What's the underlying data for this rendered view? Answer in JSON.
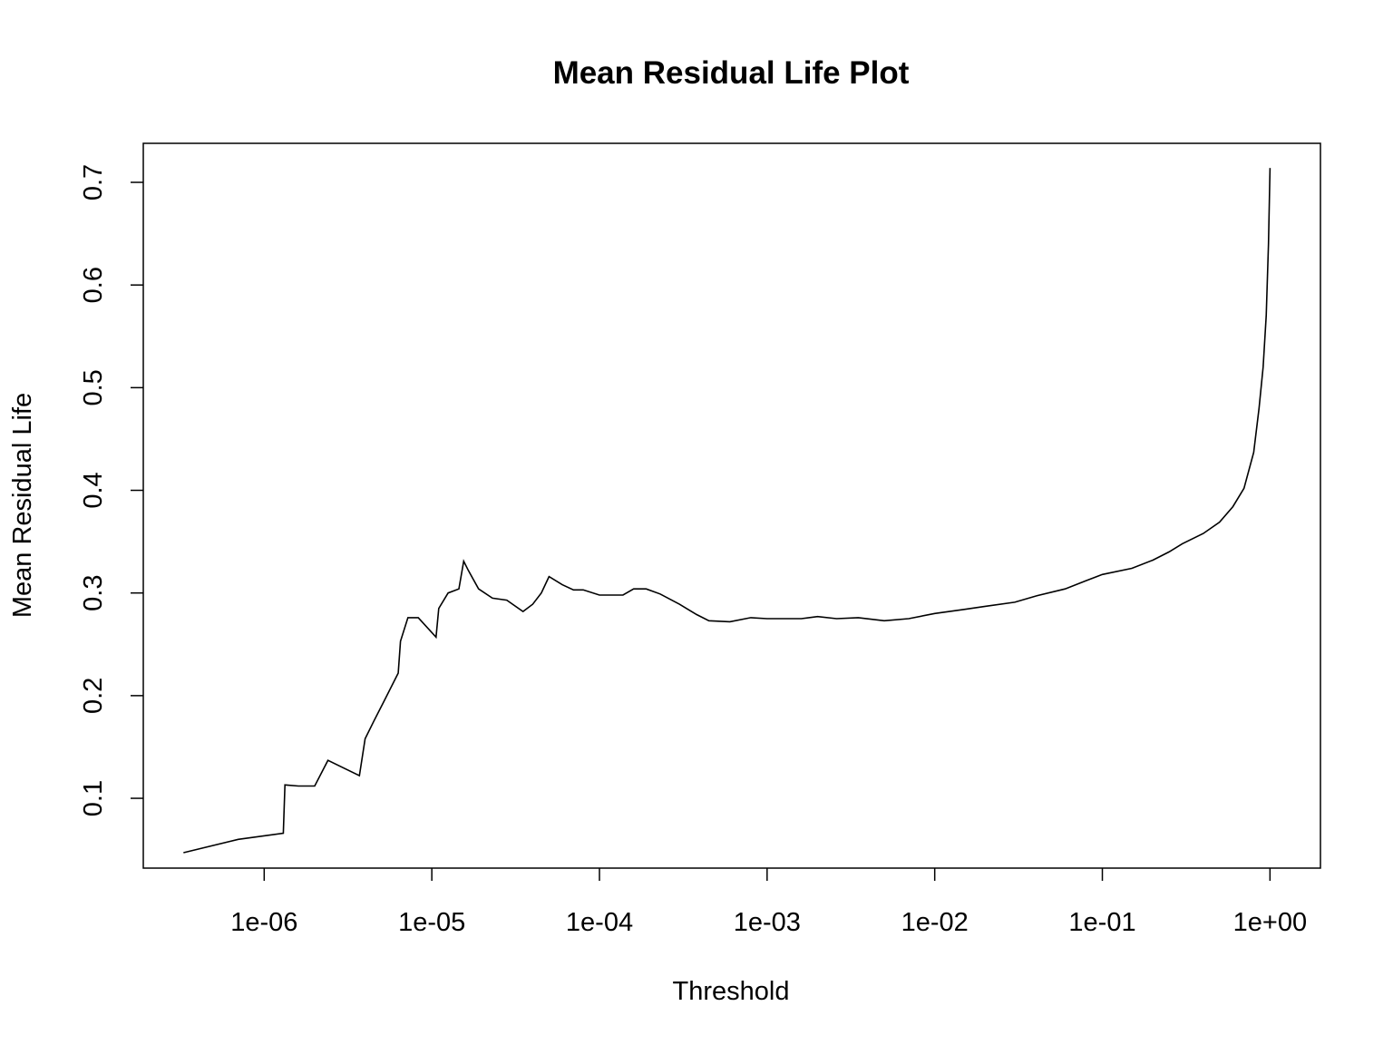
{
  "chart_data": {
    "type": "line",
    "title": "Mean Residual Life Plot",
    "xlabel": "Threshold",
    "ylabel": "Mean Residual Life",
    "x_scale": "log",
    "xlim": [
      1.9e-07,
      2.0
    ],
    "ylim": [
      0.032,
      0.738
    ],
    "x_ticks": [
      {
        "value": 1e-06,
        "label": "1e-06"
      },
      {
        "value": 1e-05,
        "label": "1e-05"
      },
      {
        "value": 0.0001,
        "label": "1e-04"
      },
      {
        "value": 0.001,
        "label": "1e-03"
      },
      {
        "value": 0.01,
        "label": "1e-02"
      },
      {
        "value": 0.1,
        "label": "1e-01"
      },
      {
        "value": 1,
        "label": "1e+00"
      }
    ],
    "y_ticks": [
      {
        "value": 0.1,
        "label": "0.1"
      },
      {
        "value": 0.2,
        "label": "0.2"
      },
      {
        "value": 0.3,
        "label": "0.3"
      },
      {
        "value": 0.4,
        "label": "0.4"
      },
      {
        "value": 0.5,
        "label": "0.5"
      },
      {
        "value": 0.6,
        "label": "0.6"
      },
      {
        "value": 0.7,
        "label": "0.7"
      }
    ],
    "grid": false,
    "legend": "none",
    "line_color": "#000000",
    "series": [
      {
        "x": [
          3.3e-07,
          7e-07,
          1.3e-06,
          1.33e-06,
          1.6e-06,
          2e-06,
          2.4e-06,
          3.7e-06,
          4e-06,
          4.5e-06,
          5.2e-06,
          6.3e-06,
          6.5e-06,
          7.2e-06,
          8.3e-06,
          1.06e-05,
          1.1e-05,
          1.25e-05,
          1.45e-05,
          1.55e-05,
          1.65e-05,
          1.9e-05,
          2.3e-05,
          2.8e-05,
          3.5e-05,
          4e-05,
          4.5e-05,
          5e-05,
          6e-05,
          7e-05,
          8e-05,
          0.0001,
          0.000138,
          0.00016,
          0.00019,
          0.00023,
          0.0003,
          0.00038,
          0.00045,
          0.0006,
          0.0008,
          0.001,
          0.0013,
          0.0016,
          0.002,
          0.0026,
          0.0035,
          0.005,
          0.007,
          0.01,
          0.015,
          0.02,
          0.03,
          0.04,
          0.06,
          0.08,
          0.1,
          0.15,
          0.2,
          0.25,
          0.3,
          0.4,
          0.5,
          0.6,
          0.7,
          0.8,
          0.86,
          0.91,
          0.95,
          0.98,
          1.0
        ],
        "y": [
          0.047,
          0.06,
          0.066,
          0.113,
          0.112,
          0.112,
          0.137,
          0.122,
          0.158,
          0.175,
          0.195,
          0.222,
          0.253,
          0.276,
          0.276,
          0.257,
          0.285,
          0.3,
          0.304,
          0.331,
          0.322,
          0.304,
          0.295,
          0.293,
          0.282,
          0.289,
          0.3,
          0.316,
          0.308,
          0.303,
          0.303,
          0.298,
          0.298,
          0.304,
          0.304,
          0.299,
          0.289,
          0.279,
          0.273,
          0.272,
          0.276,
          0.275,
          0.275,
          0.275,
          0.277,
          0.275,
          0.276,
          0.273,
          0.275,
          0.28,
          0.284,
          0.287,
          0.291,
          0.297,
          0.304,
          0.312,
          0.318,
          0.324,
          0.332,
          0.34,
          0.348,
          0.358,
          0.369,
          0.384,
          0.402,
          0.437,
          0.48,
          0.52,
          0.57,
          0.64,
          0.714
        ]
      }
    ]
  }
}
